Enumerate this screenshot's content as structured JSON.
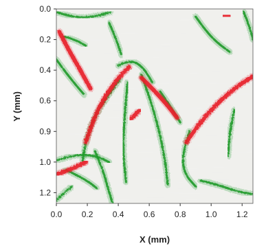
{
  "chart_data": {
    "type": "heatmap",
    "title": "",
    "xlabel": "X (mm)",
    "ylabel": "Y (mm)",
    "x_ticks": [
      "0.0",
      "0.2",
      "0.4",
      "0.6",
      "0.8",
      "1.0",
      "1.2"
    ],
    "y_ticks": [
      "0.0",
      "0.2",
      "0.4",
      "0.6",
      "0.9",
      "1.0",
      "1.2"
    ],
    "xlim": [
      0.0,
      1.27
    ],
    "ylim": [
      0.0,
      1.27
    ],
    "grid": false,
    "legend": "none",
    "colors": {
      "background": "#f1f1ee",
      "red_phase": "#e8202a",
      "green_phase": "#1e9a2a"
    },
    "red_features": [
      {
        "name": "upper-left arc",
        "points": [
          [
            0.02,
            0.15
          ],
          [
            0.08,
            0.27
          ],
          [
            0.15,
            0.39
          ],
          [
            0.22,
            0.52
          ]
        ]
      },
      {
        "name": "central long streak",
        "points": [
          [
            0.19,
            0.87
          ],
          [
            0.24,
            0.72
          ],
          [
            0.31,
            0.58
          ],
          [
            0.4,
            0.45
          ],
          [
            0.47,
            0.38
          ]
        ]
      },
      {
        "name": "center blob",
        "points": [
          [
            0.48,
            0.72
          ],
          [
            0.54,
            0.66
          ]
        ]
      },
      {
        "name": "right diagonal streak",
        "points": [
          [
            0.84,
            0.87
          ],
          [
            0.9,
            0.78
          ],
          [
            0.99,
            0.67
          ],
          [
            1.09,
            0.57
          ],
          [
            1.19,
            0.49
          ],
          [
            1.27,
            0.44
          ]
        ]
      },
      {
        "name": "mid-right inner streak",
        "points": [
          [
            0.55,
            0.45
          ],
          [
            0.63,
            0.53
          ],
          [
            0.71,
            0.62
          ],
          [
            0.78,
            0.71
          ]
        ]
      },
      {
        "name": "bottom-left streak",
        "points": [
          [
            0.0,
            1.08
          ],
          [
            0.06,
            1.06
          ],
          [
            0.13,
            1.03
          ],
          [
            0.19,
            1.0
          ]
        ]
      },
      {
        "name": "top-right speck",
        "points": [
          [
            1.08,
            0.04
          ],
          [
            1.12,
            0.05
          ]
        ]
      }
    ],
    "green_features": [
      {
        "name": "top-left arc",
        "points": [
          [
            0.0,
            0.02
          ],
          [
            0.12,
            0.06
          ],
          [
            0.25,
            0.05
          ],
          [
            0.35,
            0.02
          ]
        ]
      },
      {
        "name": "left arc",
        "points": [
          [
            0.0,
            0.33
          ],
          [
            0.05,
            0.4
          ],
          [
            0.12,
            0.49
          ],
          [
            0.18,
            0.56
          ]
        ]
      },
      {
        "name": "upper-middle arc",
        "points": [
          [
            0.34,
            0.09
          ],
          [
            0.38,
            0.18
          ],
          [
            0.42,
            0.3
          ]
        ]
      },
      {
        "name": "central loop",
        "points": [
          [
            0.4,
            0.37
          ],
          [
            0.48,
            0.33
          ],
          [
            0.56,
            0.38
          ],
          [
            0.62,
            0.48
          ]
        ]
      },
      {
        "name": "central left arc",
        "points": [
          [
            0.17,
            0.99
          ],
          [
            0.19,
            0.85
          ],
          [
            0.25,
            0.7
          ],
          [
            0.33,
            0.57
          ],
          [
            0.41,
            0.46
          ]
        ]
      },
      {
        "name": "central-right arc",
        "points": [
          [
            0.55,
            0.43
          ],
          [
            0.61,
            0.6
          ],
          [
            0.66,
            0.78
          ],
          [
            0.7,
            0.97
          ],
          [
            0.72,
            1.15
          ]
        ]
      },
      {
        "name": "middle lower arc",
        "points": [
          [
            0.46,
            0.48
          ],
          [
            0.44,
            0.7
          ],
          [
            0.43,
            0.92
          ],
          [
            0.45,
            1.13
          ]
        ]
      },
      {
        "name": "right upper arc",
        "points": [
          [
            0.9,
            0.05
          ],
          [
            0.97,
            0.15
          ],
          [
            1.05,
            0.23
          ],
          [
            1.12,
            0.28
          ]
        ]
      },
      {
        "name": "right vertical arc",
        "points": [
          [
            1.21,
            0.02
          ],
          [
            1.25,
            0.12
          ],
          [
            1.27,
            0.2
          ]
        ]
      },
      {
        "name": "right lower loop",
        "points": [
          [
            0.86,
            0.8
          ],
          [
            0.81,
            0.95
          ],
          [
            0.83,
            1.08
          ],
          [
            0.9,
            1.16
          ]
        ]
      },
      {
        "name": "bottom-right streak",
        "points": [
          [
            0.93,
            1.12
          ],
          [
            1.05,
            1.15
          ],
          [
            1.16,
            1.19
          ],
          [
            1.27,
            1.21
          ]
        ]
      },
      {
        "name": "bottom-left arc",
        "points": [
          [
            0.0,
            0.99
          ],
          [
            0.09,
            0.96
          ],
          [
            0.19,
            0.95
          ],
          [
            0.28,
            0.97
          ],
          [
            0.34,
            1.0
          ]
        ]
      },
      {
        "name": "lower-left inner arc",
        "points": [
          [
            0.06,
            1.05
          ],
          [
            0.14,
            1.09
          ],
          [
            0.21,
            1.13
          ],
          [
            0.26,
            1.17
          ]
        ]
      },
      {
        "name": "bottom-left corner",
        "points": [
          [
            0.0,
            1.25
          ],
          [
            0.05,
            1.2
          ],
          [
            0.1,
            1.16
          ]
        ]
      },
      {
        "name": "lower center arc",
        "points": [
          [
            0.25,
            0.93
          ],
          [
            0.3,
            1.05
          ],
          [
            0.33,
            1.16
          ],
          [
            0.36,
            1.26
          ]
        ]
      },
      {
        "name": "right-center arc",
        "points": [
          [
            0.67,
            0.54
          ],
          [
            0.74,
            0.64
          ],
          [
            0.8,
            0.74
          ]
        ]
      },
      {
        "name": "left-upper arc",
        "points": [
          [
            0.05,
            0.18
          ],
          [
            0.12,
            0.2
          ],
          [
            0.19,
            0.24
          ]
        ]
      },
      {
        "name": "lower-right vertical",
        "points": [
          [
            1.15,
            0.66
          ],
          [
            1.12,
            0.8
          ],
          [
            1.11,
            0.96
          ]
        ]
      }
    ]
  }
}
